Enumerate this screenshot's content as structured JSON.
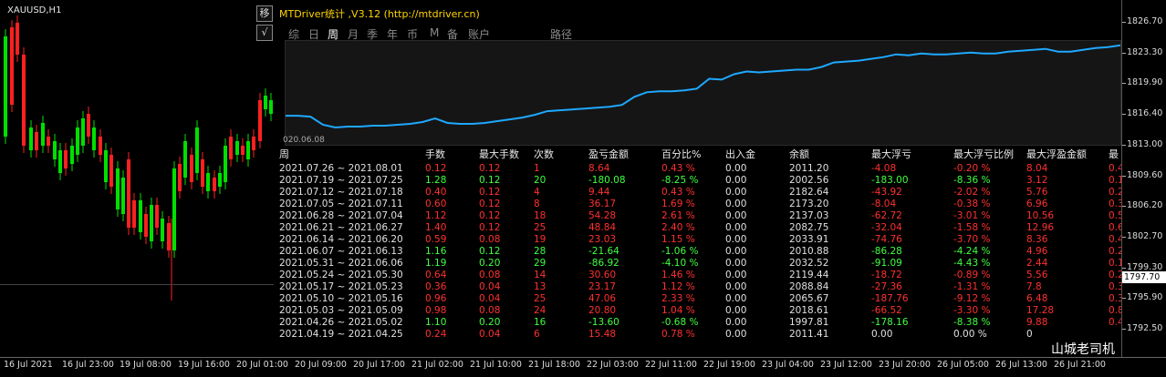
{
  "chart": {
    "symbol": "XAUUSD,H1",
    "tool_buttons": [
      "移",
      "√"
    ],
    "current_price": "1797.70",
    "price_ticks": [
      "1826.70",
      "1823.30",
      "1819.90",
      "1816.40",
      "1813.00",
      "1809.60",
      "1806.20",
      "1802.70",
      "1799.30",
      "1795.90",
      "1792.50"
    ],
    "time_ticks": [
      "16 Jul 2021",
      "16 Jul 23:00",
      "19 Jul 08:00",
      "19 Jul 16:00",
      "20 Jul 01:00",
      "20 Jul 09:00",
      "20 Jul 17:00",
      "21 Jul 02:00",
      "21 Jul 10:00",
      "21 Jul 18:00",
      "22 Jul 03:00",
      "22 Jul 11:00",
      "22 Jul 19:00",
      "23 Jul 04:00",
      "23 Jul 12:00",
      "23 Jul 20:00",
      "26 Jul 05:00",
      "26 Jul 13:00",
      "26 Jul 21:00"
    ],
    "colors": {
      "bull": "#00e000",
      "bear": "#ff2020",
      "curve": "#1fa8ff",
      "title": "#ffd400"
    }
  },
  "panel": {
    "title": "MTDriver统计 ,V3.12 (http://mtdriver.cn)",
    "tabs": [
      "综",
      "日",
      "周",
      "月",
      "季",
      "年",
      "币",
      "M",
      "备",
      "账户",
      "路径"
    ],
    "active_tab": "周",
    "curve_start_label": "020.06.08",
    "equity_curve": [
      1816.4,
      1816.4,
      1816.3,
      1815.4,
      1815.1,
      1815.2,
      1815.2,
      1815.3,
      1815.3,
      1815.4,
      1815.5,
      1815.7,
      1816.1,
      1815.6,
      1815.5,
      1815.5,
      1815.6,
      1815.8,
      1816.0,
      1816.2,
      1816.5,
      1816.9,
      1817.0,
      1817.1,
      1817.2,
      1817.3,
      1817.4,
      1817.6,
      1818.5,
      1819.0,
      1819.1,
      1819.1,
      1819.2,
      1819.4,
      1820.5,
      1820.4,
      1821.0,
      1821.3,
      1821.2,
      1821.3,
      1821.4,
      1821.5,
      1821.5,
      1821.8,
      1822.3,
      1822.4,
      1822.5,
      1822.7,
      1822.9,
      1823.2,
      1823.1,
      1823.3,
      1823.2,
      1823.2,
      1823.3,
      1823.4,
      1823.3,
      1823.3,
      1823.5,
      1823.6,
      1823.7,
      1823.8,
      1823.5,
      1823.5,
      1823.7,
      1823.9,
      1824.0,
      1824.2
    ],
    "headers": [
      "周",
      "手数",
      "最大手数",
      "次数",
      "盈亏金额",
      "百分比%",
      "出入金",
      "余额",
      "最大浮亏",
      "最大浮亏比例",
      "最大浮盈金额",
      "最"
    ],
    "rows": [
      {
        "period": "2021.07.26 ~ 2021.08.01",
        "lots": "0.12",
        "max_lots": "0.12",
        "count": "1",
        "pnl": "8.64",
        "pct": "0.43 %",
        "flow": "0.00",
        "balance": "2011.20",
        "max_dd": "-4.08",
        "max_dd_pct": "-0.20 %",
        "max_profit": "8.04",
        "last": "0.4",
        "color": "red"
      },
      {
        "period": "2021.07.19 ~ 2021.07.25",
        "lots": "1.28",
        "max_lots": "0.12",
        "count": "20",
        "pnl": "-180.08",
        "pct": "-8.25 %",
        "flow": "0.00",
        "balance": "2002.56",
        "max_dd": "-183.00",
        "max_dd_pct": "-8.36 %",
        "max_profit": "3.12",
        "last": "0.1",
        "color": "green"
      },
      {
        "period": "2021.07.12 ~ 2021.07.18",
        "lots": "0.40",
        "max_lots": "0.12",
        "count": "4",
        "pnl": "9.44",
        "pct": "0.43 %",
        "flow": "0.00",
        "balance": "2182.64",
        "max_dd": "-43.92",
        "max_dd_pct": "-2.02 %",
        "max_profit": "5.76",
        "last": "0.2",
        "color": "red"
      },
      {
        "period": "2021.07.05 ~ 2021.07.11",
        "lots": "0.60",
        "max_lots": "0.12",
        "count": "8",
        "pnl": "36.17",
        "pct": "1.69 %",
        "flow": "0.00",
        "balance": "2173.20",
        "max_dd": "-8.04",
        "max_dd_pct": "-0.38 %",
        "max_profit": "6.96",
        "last": "0.3",
        "color": "red"
      },
      {
        "period": "2021.06.28 ~ 2021.07.04",
        "lots": "1.12",
        "max_lots": "0.12",
        "count": "18",
        "pnl": "54.28",
        "pct": "2.61 %",
        "flow": "0.00",
        "balance": "2137.03",
        "max_dd": "-62.72",
        "max_dd_pct": "-3.01 %",
        "max_profit": "10.56",
        "last": "0.5",
        "color": "red"
      },
      {
        "period": "2021.06.21 ~ 2021.06.27",
        "lots": "1.40",
        "max_lots": "0.12",
        "count": "25",
        "pnl": "48.84",
        "pct": "2.40 %",
        "flow": "0.00",
        "balance": "2082.75",
        "max_dd": "-32.04",
        "max_dd_pct": "-1.58 %",
        "max_profit": "12.96",
        "last": "0.6",
        "color": "red"
      },
      {
        "period": "2021.06.14 ~ 2021.06.20",
        "lots": "0.59",
        "max_lots": "0.08",
        "count": "19",
        "pnl": "23.03",
        "pct": "1.15 %",
        "flow": "0.00",
        "balance": "2033.91",
        "max_dd": "-74.76",
        "max_dd_pct": "-3.70 %",
        "max_profit": "8.36",
        "last": "0.4",
        "color": "red"
      },
      {
        "period": "2021.06.07 ~ 2021.06.13",
        "lots": "1.16",
        "max_lots": "0.12",
        "count": "28",
        "pnl": "-21.64",
        "pct": "-1.06 %",
        "flow": "0.00",
        "balance": "2010.88",
        "max_dd": "-86.28",
        "max_dd_pct": "-4.24 %",
        "max_profit": "4.96",
        "last": "0.2",
        "color": "green"
      },
      {
        "period": "2021.05.31 ~ 2021.06.06",
        "lots": "1.19",
        "max_lots": "0.20",
        "count": "29",
        "pnl": "-86.92",
        "pct": "-4.10 %",
        "flow": "0.00",
        "balance": "2032.52",
        "max_dd": "-91.09",
        "max_dd_pct": "-4.43 %",
        "max_profit": "2.44",
        "last": "0.1",
        "color": "green"
      },
      {
        "period": "2021.05.24 ~ 2021.05.30",
        "lots": "0.64",
        "max_lots": "0.08",
        "count": "14",
        "pnl": "30.60",
        "pct": "1.46 %",
        "flow": "0.00",
        "balance": "2119.44",
        "max_dd": "-18.72",
        "max_dd_pct": "-0.89 %",
        "max_profit": "5.56",
        "last": "0.2",
        "color": "red"
      },
      {
        "period": "2021.05.17 ~ 2021.05.23",
        "lots": "0.36",
        "max_lots": "0.04",
        "count": "13",
        "pnl": "23.17",
        "pct": "1.12 %",
        "flow": "0.00",
        "balance": "2088.84",
        "max_dd": "-27.36",
        "max_dd_pct": "-1.31 %",
        "max_profit": "7.8",
        "last": "0.3",
        "color": "red"
      },
      {
        "period": "2021.05.10 ~ 2021.05.16",
        "lots": "0.96",
        "max_lots": "0.04",
        "count": "25",
        "pnl": "47.06",
        "pct": "2.33 %",
        "flow": "0.00",
        "balance": "2065.67",
        "max_dd": "-187.76",
        "max_dd_pct": "-9.12 %",
        "max_profit": "6.48",
        "last": "0.3",
        "color": "red"
      },
      {
        "period": "2021.05.03 ~ 2021.05.09",
        "lots": "0.98",
        "max_lots": "0.08",
        "count": "24",
        "pnl": "20.80",
        "pct": "1.04 %",
        "flow": "0.00",
        "balance": "2018.61",
        "max_dd": "-66.52",
        "max_dd_pct": "-3.30 %",
        "max_profit": "17.28",
        "last": "0.8",
        "color": "red"
      },
      {
        "period": "2021.04.26 ~ 2021.05.02",
        "lots": "1.10",
        "max_lots": "0.20",
        "count": "16",
        "pnl": "-13.60",
        "pct": "-0.68 %",
        "flow": "0.00",
        "balance": "1997.81",
        "max_dd": "-178.16",
        "max_dd_pct": "-8.38 %",
        "max_profit": "9.88",
        "last": "0.4",
        "color": "green"
      },
      {
        "period": "2021.04.19 ~ 2021.04.25",
        "lots": "0.24",
        "max_lots": "0.04",
        "count": "6",
        "pnl": "15.48",
        "pct": "0.78 %",
        "flow": "0.00",
        "balance": "2011.41",
        "max_dd": "0.00",
        "max_dd_pct": "0.00 %",
        "max_profit": "0",
        "last": "",
        "color": "red"
      }
    ]
  },
  "watermark": "山城老司机"
}
